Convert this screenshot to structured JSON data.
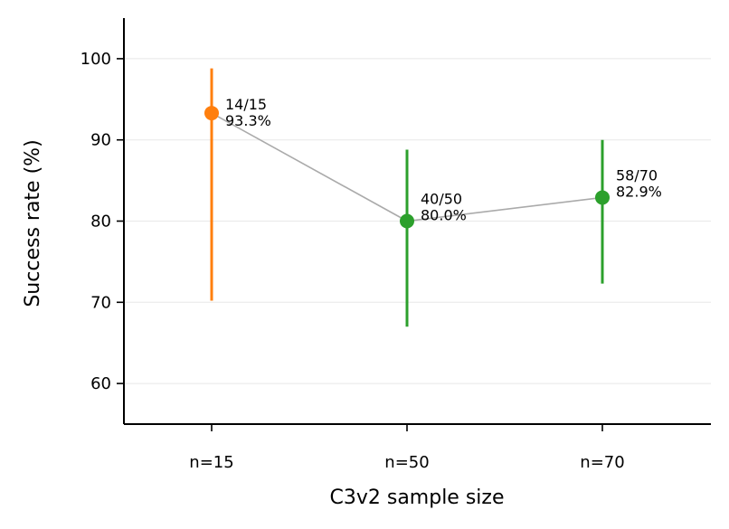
{
  "chart_data": {
    "type": "scatter",
    "title": "",
    "xlabel": "C3v2 sample size",
    "ylabel": "Success rate (%)",
    "categories": [
      "n=15",
      "n=50",
      "n=70"
    ],
    "ylim": [
      55,
      105
    ],
    "yticks": [
      60,
      70,
      80,
      90,
      100
    ],
    "grid": "horizontal",
    "legend": "none",
    "points": [
      {
        "category": "n=15",
        "value": 93.3,
        "ci_low": 70.2,
        "ci_high": 98.8,
        "count_label": "14/15",
        "percent_label": "93.3%",
        "color": "#ff7f0e"
      },
      {
        "category": "n=50",
        "value": 80.0,
        "ci_low": 67.0,
        "ci_high": 88.8,
        "count_label": "40/50",
        "percent_label": "80.0%",
        "color": "#2ca02c"
      },
      {
        "category": "n=70",
        "value": 82.9,
        "ci_low": 72.3,
        "ci_high": 90.0,
        "count_label": "58/70",
        "percent_label": "82.9%",
        "color": "#2ca02c"
      }
    ],
    "connector_color": "#aaaaaa",
    "grid_color": "#e8e8e8",
    "axis_color": "#000000"
  }
}
